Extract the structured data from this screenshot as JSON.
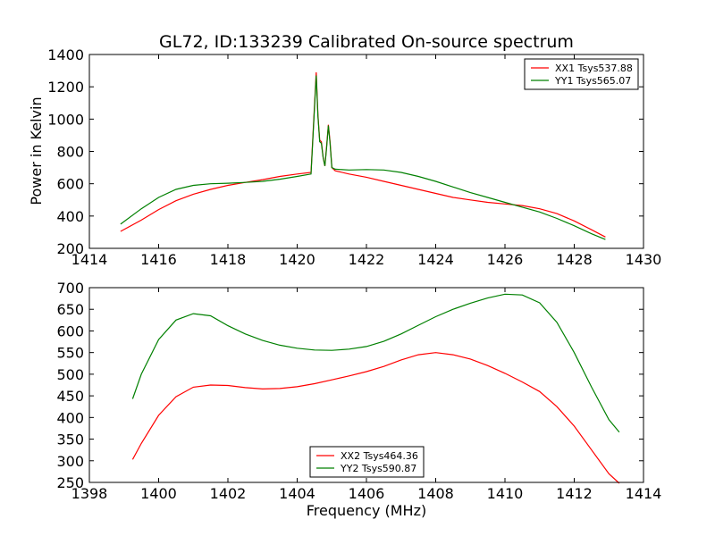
{
  "chart_data": [
    {
      "type": "line",
      "title": "GL72, ID:133239 Calibrated On-source spectrum",
      "xlabel": "",
      "ylabel": "Power in Kelvin",
      "xlim": [
        1414,
        1430
      ],
      "ylim": [
        200,
        1400
      ],
      "xticks": [
        1414,
        1416,
        1418,
        1420,
        1422,
        1424,
        1426,
        1428,
        1430
      ],
      "yticks": [
        200,
        400,
        600,
        800,
        1000,
        1200,
        1400
      ],
      "legend_position": "upper right",
      "series": [
        {
          "name": "XX1 Tsys537.88",
          "color": "#ff0000",
          "x": [
            1414.9,
            1415.5,
            1416.0,
            1416.5,
            1417.0,
            1417.5,
            1418.0,
            1418.5,
            1419.0,
            1419.5,
            1420.0,
            1420.4,
            1420.55,
            1420.6,
            1420.65,
            1420.7,
            1420.75,
            1420.8,
            1420.85,
            1420.9,
            1420.95,
            1421.0,
            1421.1,
            1421.5,
            1422.0,
            1422.5,
            1423.0,
            1423.5,
            1424.0,
            1424.5,
            1425.0,
            1425.5,
            1426.0,
            1426.5,
            1427.0,
            1427.5,
            1428.0,
            1428.5,
            1428.9
          ],
          "y": [
            305,
            375,
            440,
            495,
            535,
            565,
            590,
            608,
            625,
            645,
            660,
            670,
            1290,
            1030,
            870,
            860,
            760,
            710,
            830,
            965,
            860,
            700,
            680,
            660,
            640,
            615,
            590,
            565,
            540,
            515,
            500,
            485,
            475,
            465,
            445,
            415,
            370,
            315,
            270
          ]
        },
        {
          "name": "YY1 Tsys565.07",
          "color": "#008000",
          "x": [
            1414.9,
            1415.5,
            1416.0,
            1416.5,
            1417.0,
            1417.5,
            1418.0,
            1418.5,
            1419.0,
            1419.5,
            1420.0,
            1420.4,
            1420.55,
            1420.6,
            1420.65,
            1420.7,
            1420.75,
            1420.8,
            1420.85,
            1420.9,
            1420.95,
            1421.0,
            1421.1,
            1421.5,
            1422.0,
            1422.5,
            1423.0,
            1423.5,
            1424.0,
            1424.5,
            1425.0,
            1425.5,
            1426.0,
            1426.5,
            1427.0,
            1427.5,
            1428.0,
            1428.5,
            1428.9
          ],
          "y": [
            350,
            445,
            515,
            565,
            590,
            600,
            603,
            608,
            615,
            628,
            645,
            660,
            1270,
            1020,
            860,
            850,
            760,
            710,
            820,
            960,
            850,
            700,
            690,
            685,
            688,
            685,
            670,
            645,
            615,
            580,
            545,
            515,
            485,
            455,
            425,
            385,
            340,
            290,
            255
          ]
        }
      ]
    },
    {
      "type": "line",
      "title": "",
      "xlabel": "Frequency (MHz)",
      "ylabel": "",
      "xlim": [
        1398,
        1414
      ],
      "ylim": [
        250,
        700
      ],
      "xticks": [
        1398,
        1400,
        1402,
        1404,
        1406,
        1408,
        1410,
        1412,
        1414
      ],
      "yticks": [
        250,
        300,
        350,
        400,
        450,
        500,
        550,
        600,
        650,
        700
      ],
      "legend_position": "lower center",
      "series": [
        {
          "name": "XX2 Tsys464.36",
          "color": "#ff0000",
          "x": [
            1399.25,
            1399.5,
            1400.0,
            1400.5,
            1401.0,
            1401.5,
            1402.0,
            1402.5,
            1403.0,
            1403.5,
            1404.0,
            1404.5,
            1405.0,
            1405.5,
            1406.0,
            1406.5,
            1407.0,
            1407.5,
            1408.0,
            1408.5,
            1409.0,
            1409.5,
            1410.0,
            1410.5,
            1411.0,
            1411.5,
            1412.0,
            1412.5,
            1413.0,
            1413.3
          ],
          "y": [
            303,
            340,
            405,
            448,
            470,
            475,
            474,
            469,
            466,
            467,
            471,
            478,
            487,
            496,
            506,
            518,
            533,
            545,
            550,
            545,
            535,
            520,
            502,
            482,
            460,
            425,
            380,
            325,
            270,
            248
          ]
        },
        {
          "name": "YY2 Tsys590.87",
          "color": "#008000",
          "x": [
            1399.25,
            1399.5,
            1400.0,
            1400.5,
            1401.0,
            1401.5,
            1402.0,
            1402.5,
            1403.0,
            1403.5,
            1404.0,
            1404.5,
            1405.0,
            1405.5,
            1406.0,
            1406.5,
            1407.0,
            1407.5,
            1408.0,
            1408.5,
            1409.0,
            1409.5,
            1410.0,
            1410.5,
            1411.0,
            1411.5,
            1412.0,
            1412.5,
            1413.0,
            1413.3
          ],
          "y": [
            443,
            500,
            580,
            625,
            640,
            635,
            612,
            593,
            578,
            567,
            560,
            556,
            555,
            558,
            564,
            576,
            593,
            613,
            633,
            650,
            664,
            676,
            685,
            683,
            665,
            620,
            550,
            470,
            395,
            366
          ]
        }
      ]
    }
  ]
}
